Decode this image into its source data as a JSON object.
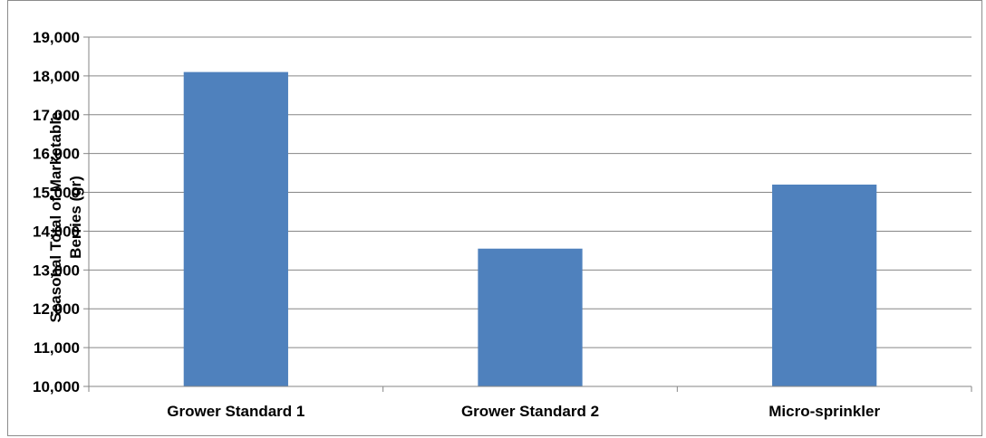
{
  "chart_data": {
    "type": "bar",
    "title": "",
    "xlabel": "",
    "ylabel_lines": [
      "Seasonal Total of Marketable",
      "Berries (gr)"
    ],
    "categories": [
      "Grower Standard 1",
      "Grower Standard 2",
      "Micro-sprinkler"
    ],
    "values": [
      18100,
      13550,
      15200
    ],
    "ylim": [
      10000,
      19000
    ],
    "yticks": [
      10000,
      11000,
      12000,
      13000,
      14000,
      15000,
      16000,
      17000,
      18000,
      19000
    ],
    "ytick_labels": [
      "10,000",
      "11,000",
      "12,000",
      "13,000",
      "14,000",
      "15,000",
      "16,000",
      "17,000",
      "18,000",
      "19,000"
    ],
    "grid": true,
    "legend": "none",
    "bar_color": "#4f81bd"
  }
}
